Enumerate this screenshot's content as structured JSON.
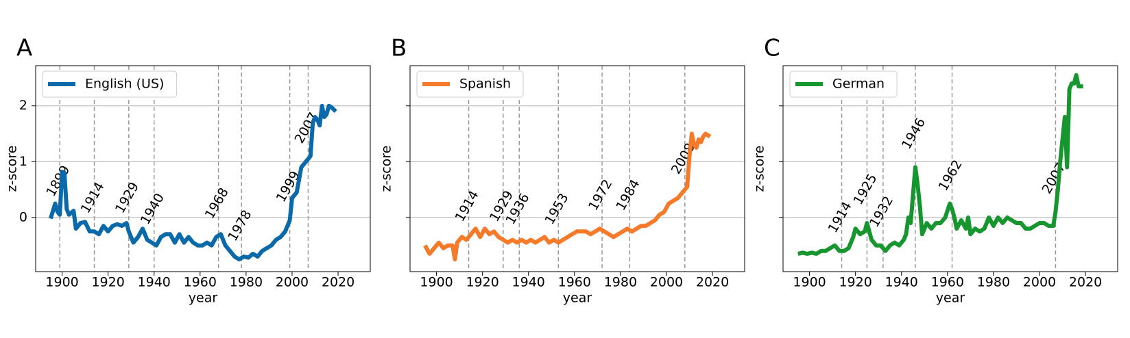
{
  "chart_data": [
    {
      "type": "line",
      "panel_label": "A",
      "xlabel": "year",
      "ylabel": "z-score",
      "xlim": [
        1888.5,
        2034
      ],
      "ylim": [
        -0.97,
        2.72
      ],
      "xticks": [
        1900,
        1920,
        1940,
        1960,
        1980,
        2000,
        2020
      ],
      "yticks": [
        0,
        1,
        2
      ],
      "ytick_labels": true,
      "grid": true,
      "legend": "upper left",
      "event_years": [
        1899,
        1914,
        1929,
        1940,
        1968,
        1978,
        1999,
        2007
      ],
      "x": [
        1895,
        1897,
        1898,
        1899,
        1900,
        1901,
        1902,
        1903,
        1905,
        1906,
        1908,
        1910,
        1912,
        1914,
        1916,
        1918,
        1920,
        1922,
        1924,
        1926,
        1928,
        1929,
        1931,
        1933,
        1935,
        1937,
        1939,
        1941,
        1943,
        1945,
        1947,
        1949,
        1951,
        1953,
        1955,
        1957,
        1959,
        1961,
        1963,
        1965,
        1967,
        1969,
        1971,
        1973,
        1975,
        1977,
        1979,
        1981,
        1983,
        1985,
        1987,
        1989,
        1991,
        1993,
        1995,
        1997,
        1999,
        2000,
        2002,
        2004,
        2006,
        2008,
        2009,
        2010,
        2011,
        2012,
        2013,
        2014,
        2015,
        2016,
        2017,
        2019
      ],
      "series": [
        {
          "name": "English (US)",
          "color": "#0a69a8",
          "values": [
            -0.02,
            0.25,
            0.1,
            0.05,
            0.82,
            0.8,
            0.15,
            0.05,
            0.12,
            -0.2,
            -0.1,
            -0.08,
            -0.25,
            -0.25,
            -0.3,
            -0.15,
            -0.25,
            -0.15,
            -0.12,
            -0.15,
            -0.1,
            -0.25,
            -0.45,
            -0.35,
            -0.2,
            -0.4,
            -0.45,
            -0.5,
            -0.35,
            -0.3,
            -0.3,
            -0.45,
            -0.3,
            -0.45,
            -0.35,
            -0.45,
            -0.5,
            -0.5,
            -0.45,
            -0.5,
            -0.35,
            -0.3,
            -0.5,
            -0.6,
            -0.7,
            -0.75,
            -0.7,
            -0.72,
            -0.65,
            -0.7,
            -0.6,
            -0.55,
            -0.5,
            -0.4,
            -0.35,
            -0.25,
            -0.05,
            0.35,
            0.45,
            0.9,
            1.0,
            1.1,
            1.7,
            1.8,
            1.75,
            1.65,
            2.0,
            1.8,
            1.85,
            2.0,
            1.98,
            1.9
          ]
        }
      ]
    },
    {
      "type": "line",
      "panel_label": "B",
      "xlabel": "year",
      "ylabel": "z-score",
      "xlim": [
        1888.5,
        2034
      ],
      "ylim": [
        -0.97,
        2.72
      ],
      "xticks": [
        1900,
        1920,
        1940,
        1960,
        1980,
        2000,
        2020
      ],
      "yticks": [
        0,
        1,
        2
      ],
      "ytick_labels": false,
      "grid": true,
      "legend": "upper left",
      "event_years": [
        1914,
        1929,
        1936,
        1953,
        1972,
        1984,
        2008
      ],
      "x": [
        1895,
        1897,
        1899,
        1901,
        1903,
        1905,
        1907,
        1908,
        1909,
        1911,
        1913,
        1915,
        1917,
        1919,
        1921,
        1923,
        1925,
        1927,
        1929,
        1931,
        1933,
        1935,
        1937,
        1939,
        1941,
        1943,
        1945,
        1947,
        1949,
        1951,
        1953,
        1955,
        1957,
        1959,
        1961,
        1963,
        1965,
        1967,
        1969,
        1971,
        1973,
        1975,
        1977,
        1979,
        1981,
        1983,
        1985,
        1987,
        1989,
        1991,
        1993,
        1995,
        1997,
        1999,
        2001,
        2003,
        2005,
        2007,
        2009,
        2010,
        2011,
        2012,
        2013,
        2014,
        2015,
        2016,
        2017,
        2019
      ],
      "series": [
        {
          "name": "Spanish",
          "color": "#f57a2a",
          "values": [
            -0.5,
            -0.65,
            -0.55,
            -0.45,
            -0.55,
            -0.5,
            -0.5,
            -0.75,
            -0.45,
            -0.35,
            -0.4,
            -0.3,
            -0.2,
            -0.35,
            -0.2,
            -0.3,
            -0.25,
            -0.35,
            -0.4,
            -0.45,
            -0.4,
            -0.45,
            -0.4,
            -0.45,
            -0.4,
            -0.45,
            -0.4,
            -0.35,
            -0.45,
            -0.4,
            -0.45,
            -0.4,
            -0.35,
            -0.3,
            -0.25,
            -0.25,
            -0.25,
            -0.3,
            -0.25,
            -0.2,
            -0.25,
            -0.3,
            -0.35,
            -0.3,
            -0.25,
            -0.2,
            -0.25,
            -0.2,
            -0.15,
            -0.15,
            -0.1,
            -0.05,
            0.05,
            0.1,
            0.25,
            0.3,
            0.35,
            0.45,
            0.55,
            1.1,
            1.5,
            1.3,
            1.25,
            1.4,
            1.35,
            1.45,
            1.5,
            1.45
          ]
        }
      ]
    },
    {
      "type": "line",
      "panel_label": "C",
      "xlabel": "year",
      "ylabel": "z-score",
      "xlim": [
        1888.5,
        2034
      ],
      "ylim": [
        -0.97,
        2.72
      ],
      "xticks": [
        1900,
        1920,
        1940,
        1960,
        1980,
        2000,
        2020
      ],
      "yticks": [
        0,
        1,
        2
      ],
      "ytick_labels": false,
      "grid": true,
      "legend": "upper left",
      "event_years": [
        1914,
        1925,
        1932,
        1946,
        1962,
        2007
      ],
      "x": [
        1895,
        1897,
        1899,
        1901,
        1903,
        1905,
        1907,
        1909,
        1911,
        1913,
        1915,
        1917,
        1919,
        1920,
        1922,
        1924,
        1925,
        1927,
        1929,
        1931,
        1933,
        1935,
        1937,
        1939,
        1941,
        1942,
        1943,
        1944,
        1945,
        1946,
        1947,
        1948,
        1949,
        1951,
        1953,
        1955,
        1957,
        1959,
        1961,
        1962,
        1963,
        1964,
        1966,
        1968,
        1969,
        1970,
        1972,
        1974,
        1976,
        1978,
        1980,
        1982,
        1984,
        1986,
        1988,
        1990,
        1992,
        1994,
        1996,
        1998,
        2000,
        2002,
        2004,
        2006,
        2007,
        2008,
        2009,
        2011,
        2012,
        2013,
        2014,
        2015,
        2016,
        2017,
        2019
      ],
      "series": [
        {
          "name": "German",
          "color": "#17962f",
          "values": [
            -0.65,
            -0.63,
            -0.65,
            -0.63,
            -0.65,
            -0.6,
            -0.6,
            -0.55,
            -0.5,
            -0.6,
            -0.6,
            -0.55,
            -0.35,
            -0.2,
            -0.3,
            -0.25,
            -0.1,
            -0.4,
            -0.5,
            -0.5,
            -0.6,
            -0.5,
            -0.45,
            -0.5,
            -0.4,
            -0.3,
            0.0,
            -0.1,
            0.4,
            0.9,
            0.6,
            0.2,
            -0.3,
            -0.1,
            -0.2,
            -0.1,
            -0.1,
            0.0,
            0.25,
            0.15,
            0.0,
            -0.2,
            -0.05,
            -0.2,
            0.0,
            -0.3,
            -0.2,
            -0.25,
            -0.2,
            0.0,
            -0.15,
            0.0,
            -0.1,
            0.0,
            -0.05,
            -0.1,
            -0.1,
            -0.2,
            -0.2,
            -0.15,
            -0.1,
            -0.1,
            -0.15,
            -0.15,
            0.1,
            0.5,
            1.0,
            1.8,
            0.9,
            2.3,
            2.4,
            2.4,
            2.55,
            2.35,
            2.35
          ]
        }
      ]
    }
  ]
}
